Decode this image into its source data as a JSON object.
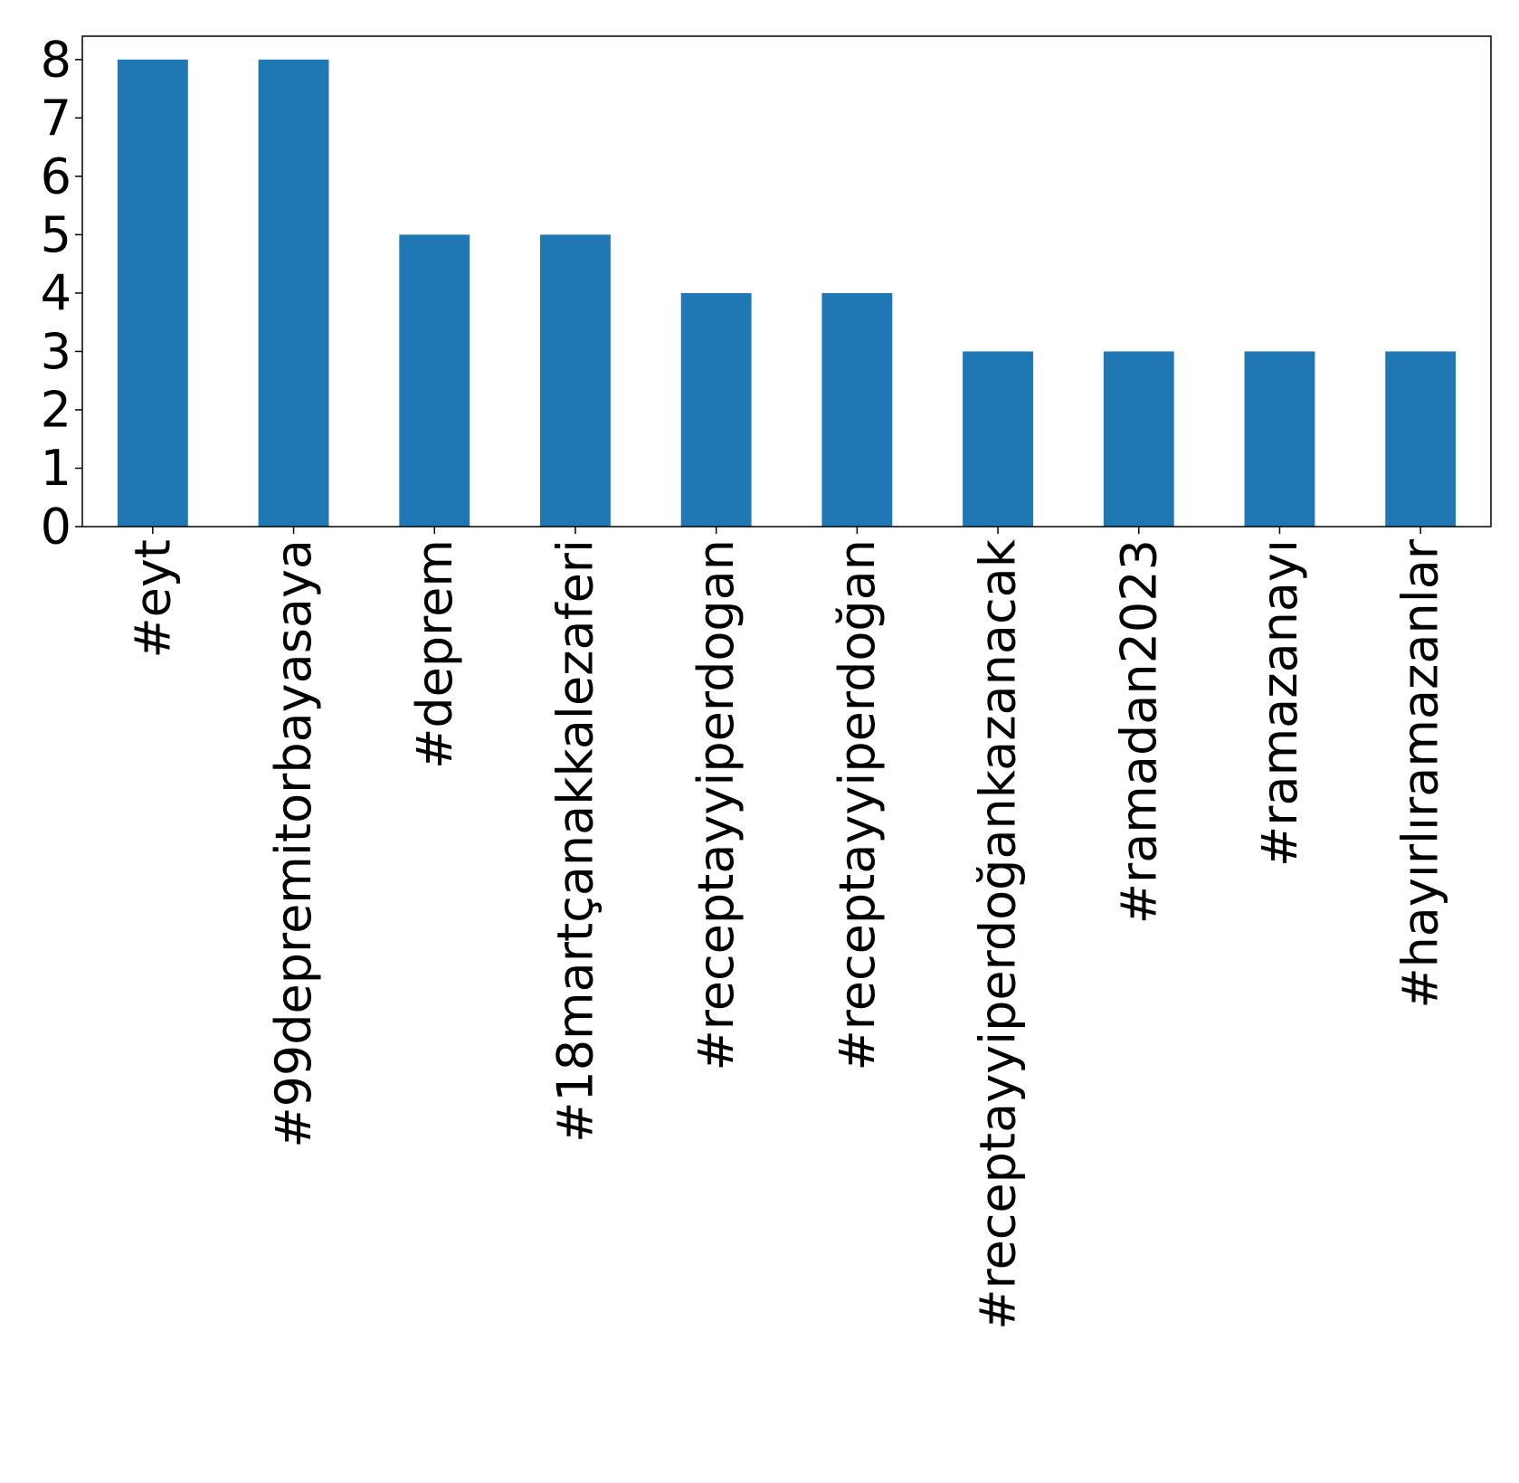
{
  "chart_data": {
    "type": "bar",
    "title": "",
    "xlabel": "",
    "ylabel": "",
    "categories": [
      "#eyt",
      "#99depremitorbayasaya",
      "#deprem",
      "#18martçanakkalezaferi",
      "#receptayyiperdogan",
      "#receptayyiperdoğan",
      "#receptayyiperdoğankazanacak",
      "#ramadan2023",
      "#ramazanayı",
      "#hayırlıramazanlar"
    ],
    "values": [
      8,
      8,
      5,
      5,
      4,
      4,
      3,
      3,
      3,
      3
    ],
    "ylim": [
      0,
      8.4
    ],
    "yticks": [
      "0",
      "1",
      "2",
      "3",
      "4",
      "5",
      "6",
      "7",
      "8"
    ],
    "grid": false,
    "legend": "none",
    "colors": {
      "bar": "#1f77b4",
      "axis": "#000000"
    }
  }
}
